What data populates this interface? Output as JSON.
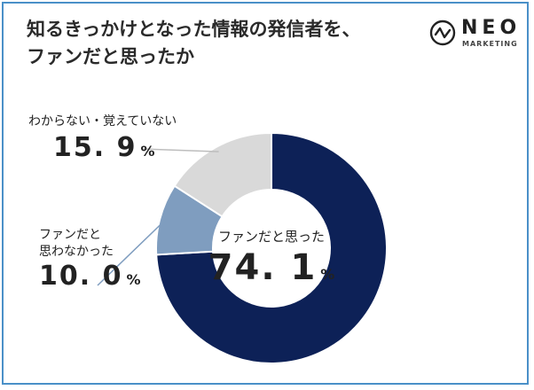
{
  "title": {
    "line1": "知るきっかけとなった情報の発信者を、",
    "line2": "ファンだと思ったか"
  },
  "logo": {
    "name": "NEO",
    "sub": "MARKETING"
  },
  "chart_data": {
    "type": "pie",
    "donut": true,
    "unit": "%",
    "slices": [
      {
        "label": "ファンだと思った",
        "value": 74.1,
        "display": "74. 1",
        "color": "#0d2157"
      },
      {
        "label": "ファンだと思わなかった",
        "label_lines": [
          "ファンだと",
          "思わなかった"
        ],
        "value": 10.0,
        "display": "10. 0",
        "color": "#7f9dbf"
      },
      {
        "label": "わからない・覚えていない",
        "value": 15.9,
        "display": "15. 9",
        "color": "#d9d9d9"
      }
    ],
    "percent_sign": "%"
  },
  "colors": {
    "frame": "#4a90c8",
    "leader_line": "#bdbdbd",
    "leader_line_2": "#7f9dbf"
  }
}
